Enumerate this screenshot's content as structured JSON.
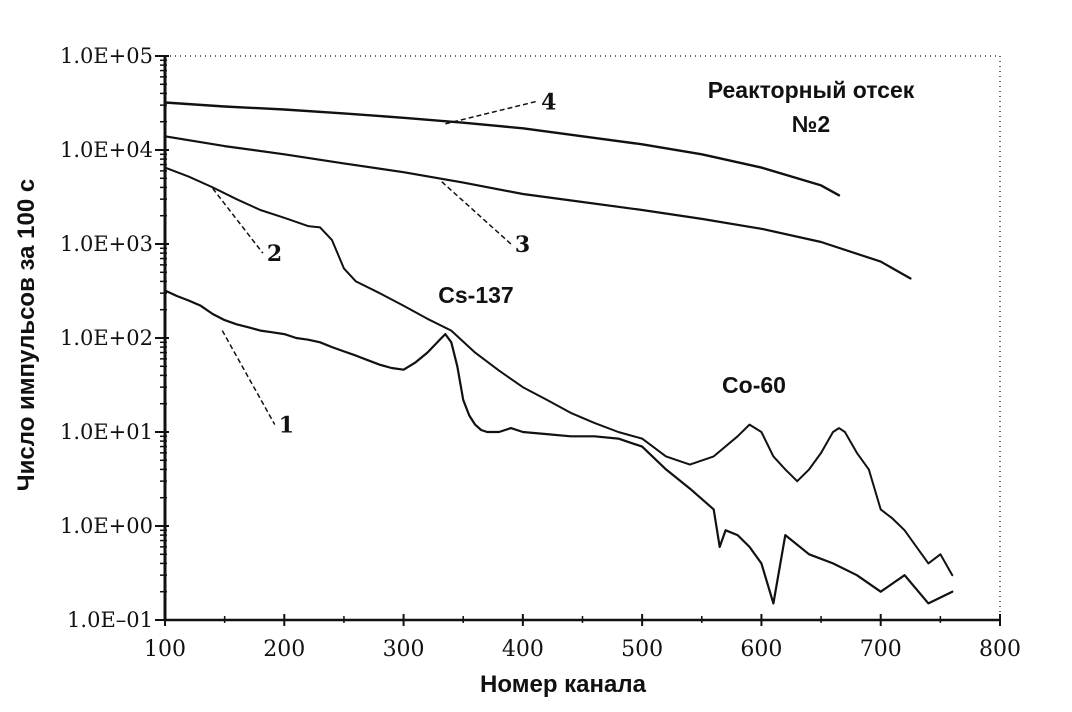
{
  "chart_data": {
    "type": "line",
    "title": "Реакторный отсек",
    "subtitle": "№2",
    "xlabel": "Номер канала",
    "ylabel": "Число импульсов за 100 с",
    "xlim": [
      100,
      800
    ],
    "ylim": [
      0.1,
      100000
    ],
    "y_scale": "log",
    "grid": false,
    "x_ticks": [
      "100",
      "200",
      "300",
      "400",
      "500",
      "600",
      "700",
      "800"
    ],
    "y_ticks": [
      "1.0E+05",
      "1.0E+04",
      "1.0E+03",
      "1.0E+02",
      "1.0E+01",
      "1.0E+00",
      "1.0E–01"
    ],
    "annotations": [
      {
        "text": "Cs-137",
        "x": 342,
        "y": 200
      },
      {
        "text": "Co-60",
        "x": 610,
        "y": 30
      }
    ],
    "series": [
      {
        "name": "1",
        "x": [
          100,
          110,
          120,
          130,
          140,
          150,
          160,
          170,
          180,
          190,
          200,
          210,
          220,
          230,
          240,
          250,
          260,
          270,
          280,
          290,
          300,
          310,
          320,
          330,
          335,
          340,
          345,
          350,
          355,
          360,
          365,
          370,
          380,
          390,
          400,
          420,
          440,
          460,
          480,
          500,
          520,
          540,
          560,
          565,
          570,
          580,
          590,
          600,
          610,
          620,
          640,
          660,
          680,
          700,
          720,
          740,
          760
        ],
        "y": [
          320,
          280,
          250,
          220,
          180,
          155,
          140,
          130,
          120,
          115,
          110,
          100,
          96,
          90,
          80,
          72,
          65,
          58,
          52,
          48,
          46,
          55,
          70,
          95,
          110,
          90,
          50,
          22,
          15,
          12,
          10.5,
          10,
          10,
          11,
          10,
          9.5,
          9,
          9,
          8.5,
          7,
          4,
          2.5,
          1.5,
          0.6,
          0.9,
          0.8,
          0.6,
          0.4,
          0.15,
          0.8,
          0.5,
          0.4,
          0.3,
          0.2,
          0.3,
          0.15,
          0.2
        ]
      },
      {
        "name": "2",
        "x": [
          100,
          120,
          140,
          160,
          180,
          200,
          220,
          230,
          240,
          250,
          260,
          280,
          300,
          320,
          340,
          360,
          380,
          400,
          420,
          440,
          460,
          480,
          500,
          520,
          540,
          560,
          580,
          590,
          600,
          610,
          620,
          630,
          640,
          650,
          660,
          665,
          670,
          680,
          690,
          700,
          710,
          720,
          730,
          740,
          750,
          760
        ],
        "y": [
          6500,
          5200,
          4000,
          3000,
          2300,
          1900,
          1550,
          1500,
          1100,
          550,
          400,
          300,
          220,
          160,
          120,
          70,
          45,
          30,
          22,
          16,
          12.5,
          10,
          8.5,
          5.5,
          4.5,
          5.5,
          9,
          12,
          10,
          5.5,
          4,
          3,
          4,
          6,
          10,
          11,
          10,
          6,
          4,
          1.5,
          1.2,
          0.9,
          0.6,
          0.4,
          0.5,
          0.3
        ]
      },
      {
        "name": "3",
        "x": [
          100,
          150,
          200,
          250,
          300,
          350,
          400,
          450,
          500,
          550,
          600,
          650,
          700,
          725
        ],
        "y": [
          14000,
          11000,
          9000,
          7200,
          5800,
          4500,
          3400,
          2800,
          2300,
          1850,
          1450,
          1050,
          650,
          430
        ]
      },
      {
        "name": "4",
        "x": [
          100,
          150,
          200,
          250,
          300,
          350,
          400,
          450,
          500,
          550,
          600,
          650,
          665
        ],
        "y": [
          32000,
          29000,
          27000,
          24500,
          22000,
          19500,
          17000,
          14000,
          11500,
          9000,
          6500,
          4200,
          3300
        ]
      }
    ],
    "series_labels": [
      {
        "text": "1",
        "x": 192,
        "y": 12,
        "pointer_x": 148,
        "pointer_y": 120
      },
      {
        "text": "2",
        "x": 182,
        "y": 800,
        "pointer_x": 140,
        "pointer_y": 3900
      },
      {
        "text": "3",
        "x": 390,
        "y": 1000,
        "pointer_x": 332,
        "pointer_y": 4600
      },
      {
        "text": "4",
        "x": 412,
        "y": 33000,
        "pointer_x": 335,
        "pointer_y": 19000
      }
    ]
  }
}
